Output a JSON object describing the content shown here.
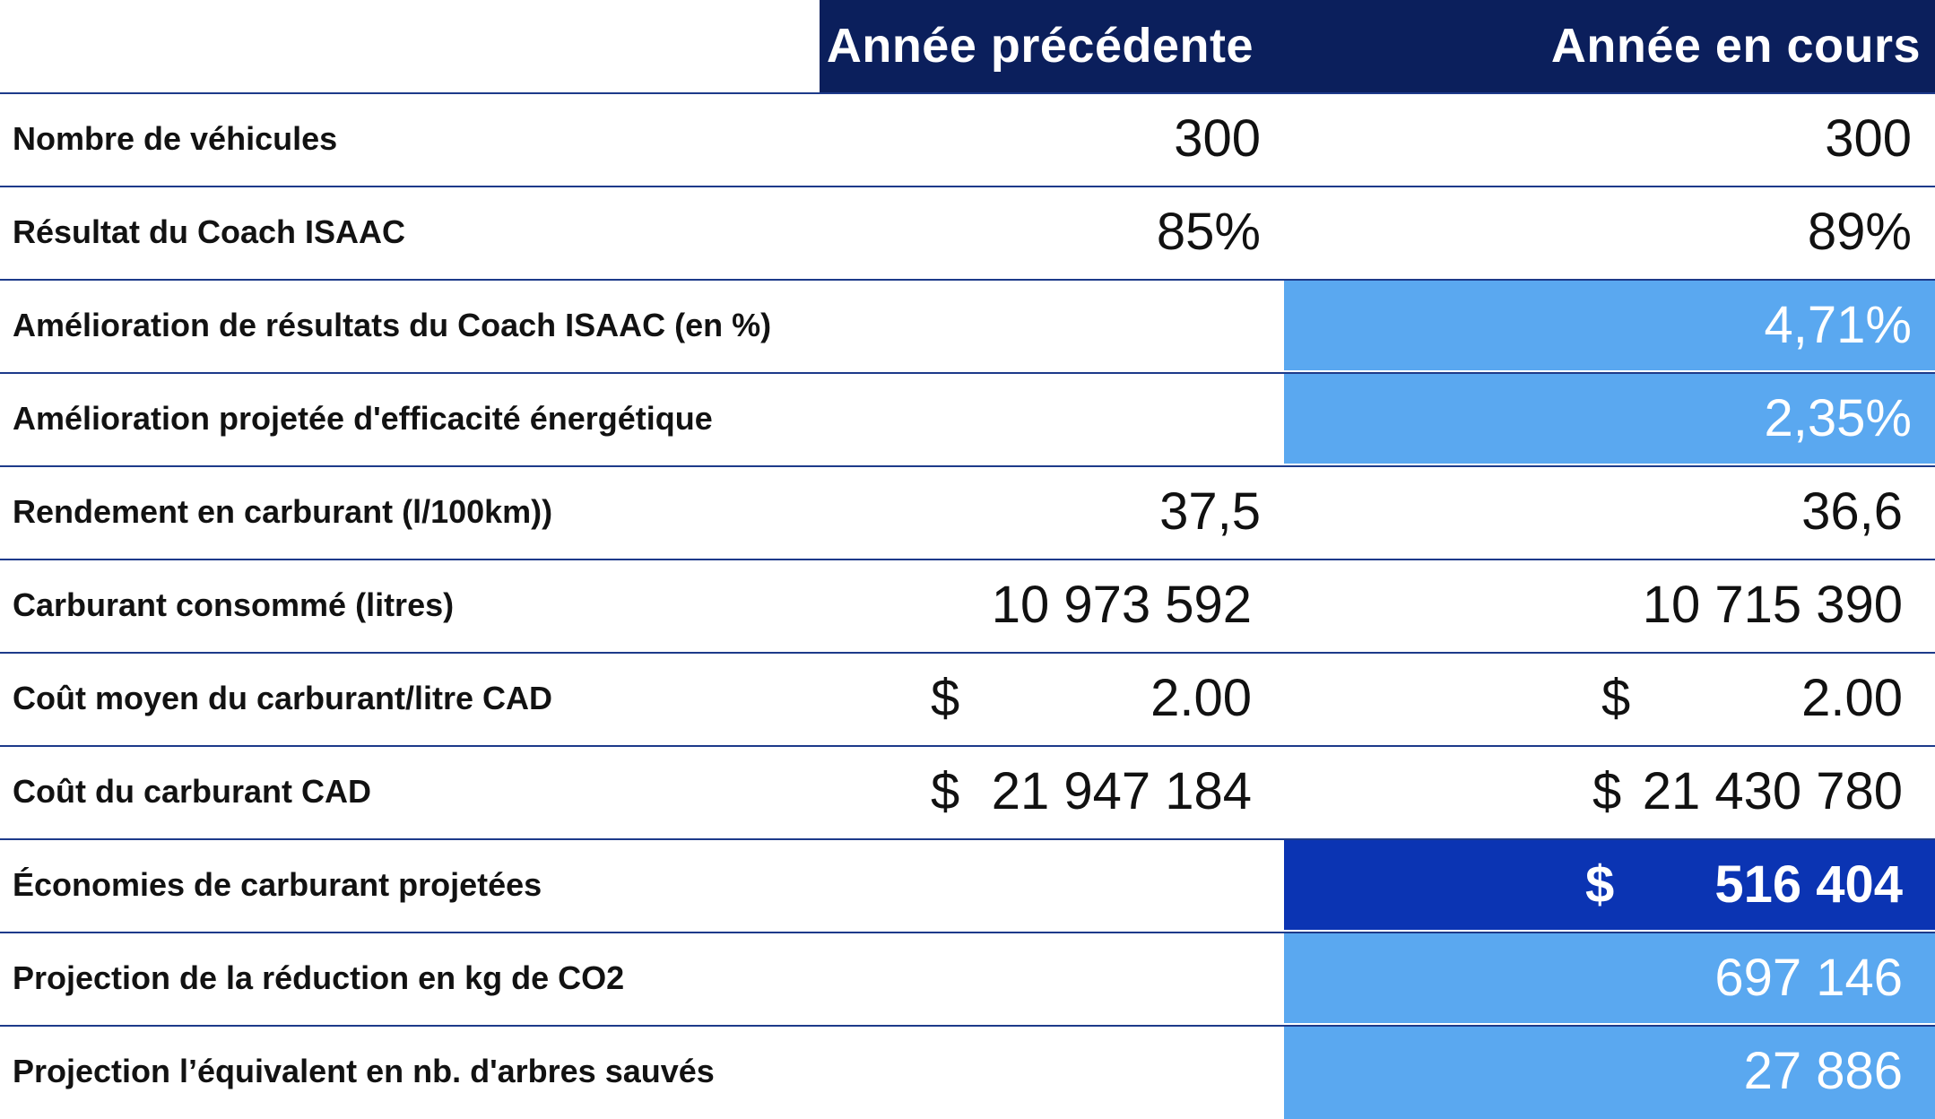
{
  "header": {
    "col_prev": "Année précédente",
    "col_cur": "Année en cours"
  },
  "rows": [
    {
      "label": "Nombre de véhicules",
      "prev": "300",
      "cur": "300"
    },
    {
      "label": "Résultat du Coach ISAAC",
      "prev": "85%",
      "cur": "89%"
    },
    {
      "label": "Amélioration de résultats du Coach ISAAC (en %)",
      "prev": "",
      "cur": "4,71%"
    },
    {
      "label": "Amélioration projetée d'efficacité énergétique",
      "prev": "",
      "cur": "2,35%"
    },
    {
      "label": "Rendement en carburant (l/100km))",
      "prev": "37,5",
      "cur": "36,6"
    },
    {
      "label": "Carburant consommé (litres)",
      "prev": "10 973 592",
      "cur": "10 715 390"
    },
    {
      "label": "Coût moyen du carburant/litre CAD",
      "prev_currency": "$",
      "prev": "2.00",
      "cur_currency": "$",
      "cur": "2.00"
    },
    {
      "label": "Coût du carburant CAD",
      "prev_currency": "$",
      "prev": "21 947 184",
      "cur_currency": "$",
      "cur": "21 430 780"
    },
    {
      "label": "Économies de carburant projetées",
      "prev": "",
      "cur_currency": "$",
      "cur": "516 404"
    },
    {
      "label": "Projection de la réduction en kg de CO2",
      "prev": "",
      "cur": "697 146"
    },
    {
      "label": "Projection l’équivalent en nb. d'arbres sauvés",
      "prev": "",
      "cur": "27 886"
    }
  ],
  "colors": {
    "header_bg": "#0b1f5c",
    "highlight_light": "#5aa8f0",
    "highlight_dark": "#0b34b3",
    "row_border": "#1d3a8a"
  }
}
